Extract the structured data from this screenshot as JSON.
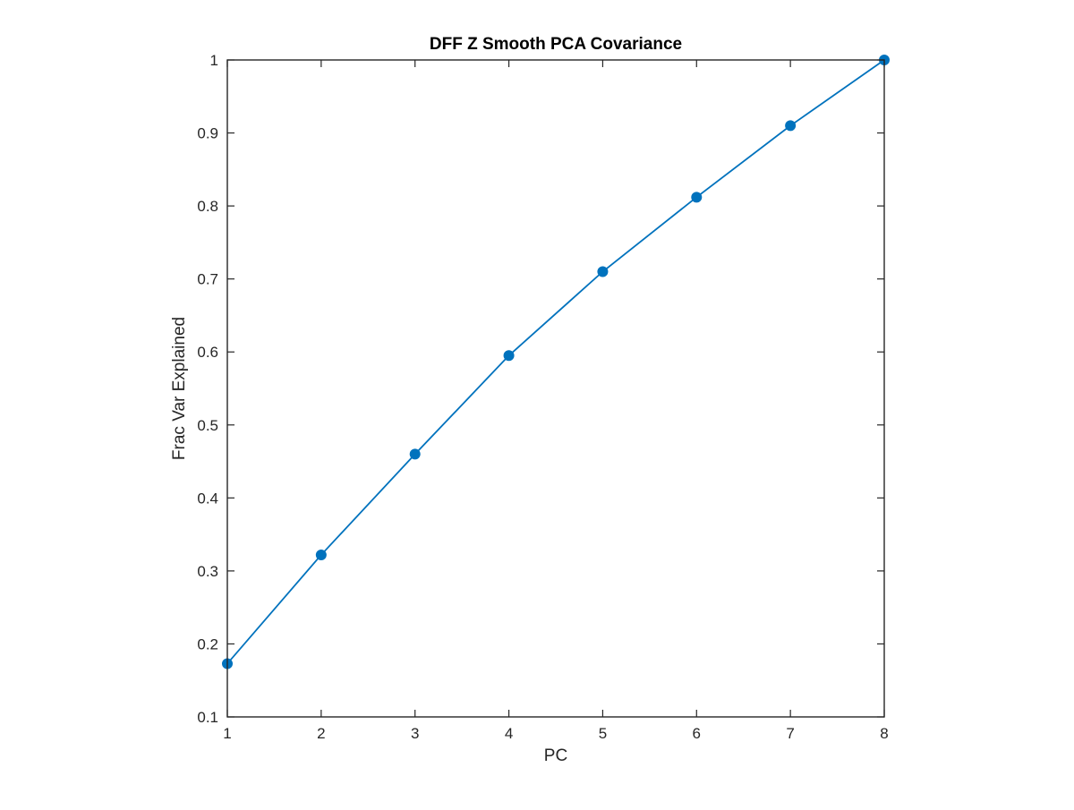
{
  "chart_data": {
    "type": "line",
    "title": "DFF Z Smooth PCA Covariance",
    "xlabel": "PC",
    "ylabel": "Frac Var Explained",
    "xlim": [
      1,
      8
    ],
    "ylim": [
      0.1,
      1
    ],
    "xticks": [
      "1",
      "2",
      "3",
      "4",
      "5",
      "6",
      "7",
      "8"
    ],
    "yticks": [
      "0.1",
      "0.2",
      "0.3",
      "0.4",
      "0.5",
      "0.6",
      "0.7",
      "0.8",
      "0.9",
      "1"
    ],
    "grid": false,
    "series": [
      {
        "x": [
          1,
          2,
          3,
          4,
          5,
          6,
          7,
          8
        ],
        "values": [
          0.173,
          0.322,
          0.46,
          0.595,
          0.71,
          0.812,
          0.91,
          1.0
        ],
        "color": "#0072BD",
        "marker": "circle"
      }
    ]
  }
}
